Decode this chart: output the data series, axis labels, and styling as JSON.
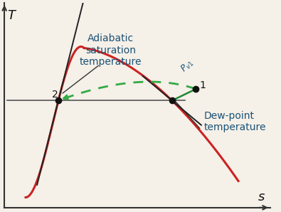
{
  "title": "",
  "xlabel": "s",
  "ylabel": "T",
  "bg_color": "#f5f0e8",
  "saturation_curve_color": "#cc2222",
  "saturation_curve_lw": 2.2,
  "horiz_line_color": "#555555",
  "horiz_line_lw": 1.2,
  "tangent_line_color": "#222222",
  "tangent_line_lw": 1.4,
  "green_solid_color": "#228833",
  "green_dashed_color": "#33aa44",
  "point_color": "#111111",
  "point_size": 6,
  "label_color": "#1a5276",
  "label_fontsize": 10,
  "axis_label_fontsize": 13,
  "pvl_label": "$P_{v1}$",
  "point1_label": "1",
  "point2_label": "2",
  "adiabatic_label": "Adiabatic\nsaturation\ntemperature",
  "dewpoint_label": "Dew-point\ntemperature",
  "xlim": [
    0,
    10
  ],
  "ylim": [
    0,
    10
  ]
}
